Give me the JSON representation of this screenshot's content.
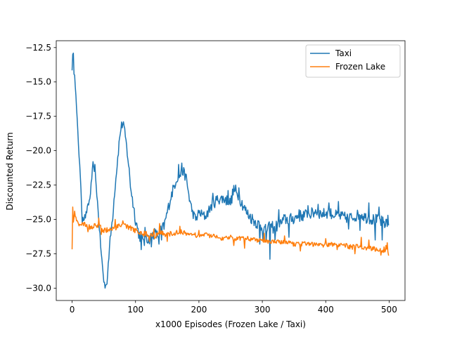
{
  "chart_data": {
    "type": "line",
    "title": "",
    "xlabel": "x1000 Episodes (Frozen Lake / Taxi)",
    "ylabel": "Discounted Return",
    "xlim": [
      -25,
      525
    ],
    "ylim": [
      -30.9,
      -12.0
    ],
    "xticks": [
      0,
      100,
      200,
      300,
      400,
      500
    ],
    "xtick_labels": [
      "0",
      "100",
      "200",
      "300",
      "400",
      "500"
    ],
    "yticks": [
      -30.0,
      -27.5,
      -25.0,
      -22.5,
      -20.0,
      -17.5,
      -15.0,
      -12.5
    ],
    "ytick_labels": [
      "−30.0",
      "−27.5",
      "−25.0",
      "−22.5",
      "−20.0",
      "−17.5",
      "−15.0",
      "−12.5"
    ],
    "grid": false,
    "legend_position": "top-right",
    "series": [
      {
        "name": "Taxi",
        "color": "#1f77b4",
        "anchors": [
          [
            0,
            -14.0
          ],
          [
            1,
            -13.1
          ],
          [
            3,
            -14.3
          ],
          [
            5,
            -15.2
          ],
          [
            8,
            -17.8
          ],
          [
            10,
            -19.5
          ],
          [
            13,
            -22.0
          ],
          [
            15,
            -24.0
          ],
          [
            18,
            -25.0
          ],
          [
            22,
            -24.6
          ],
          [
            28,
            -23.5
          ],
          [
            32,
            -21.5
          ],
          [
            35,
            -21.3
          ],
          [
            38,
            -22.5
          ],
          [
            42,
            -25.0
          ],
          [
            46,
            -27.5
          ],
          [
            50,
            -29.5
          ],
          [
            53,
            -29.9
          ],
          [
            56,
            -28.8
          ],
          [
            60,
            -26.5
          ],
          [
            64,
            -24.8
          ],
          [
            67,
            -23.0
          ],
          [
            70,
            -21.5
          ],
          [
            74,
            -19.5
          ],
          [
            77,
            -18.3
          ],
          [
            80,
            -18.0
          ],
          [
            84,
            -19.0
          ],
          [
            88,
            -20.5
          ],
          [
            92,
            -22.5
          ],
          [
            96,
            -23.8
          ],
          [
            100,
            -25.0
          ],
          [
            105,
            -26.0
          ],
          [
            110,
            -26.5
          ],
          [
            115,
            -26.0
          ],
          [
            120,
            -26.5
          ],
          [
            125,
            -26.2
          ],
          [
            130,
            -26.0
          ],
          [
            135,
            -26.2
          ],
          [
            140,
            -25.8
          ],
          [
            145,
            -25.5
          ],
          [
            150,
            -24.5
          ],
          [
            155,
            -23.5
          ],
          [
            160,
            -22.7
          ],
          [
            165,
            -22.0
          ],
          [
            170,
            -21.8
          ],
          [
            175,
            -21.5
          ],
          [
            180,
            -22.0
          ],
          [
            185,
            -23.5
          ],
          [
            190,
            -24.5
          ],
          [
            195,
            -25.0
          ],
          [
            200,
            -24.5
          ],
          [
            210,
            -24.8
          ],
          [
            220,
            -24.0
          ],
          [
            230,
            -23.5
          ],
          [
            240,
            -23.5
          ],
          [
            250,
            -23.8
          ],
          [
            255,
            -22.8
          ],
          [
            260,
            -23.2
          ],
          [
            265,
            -23.5
          ],
          [
            275,
            -24.5
          ],
          [
            285,
            -25.0
          ],
          [
            295,
            -25.4
          ],
          [
            305,
            -25.8
          ],
          [
            315,
            -25.5
          ],
          [
            325,
            -25.5
          ],
          [
            335,
            -25.0
          ],
          [
            345,
            -25.0
          ],
          [
            355,
            -24.8
          ],
          [
            365,
            -24.7
          ],
          [
            375,
            -24.6
          ],
          [
            385,
            -24.5
          ],
          [
            395,
            -24.6
          ],
          [
            405,
            -24.5
          ],
          [
            415,
            -24.7
          ],
          [
            425,
            -24.8
          ],
          [
            435,
            -24.9
          ],
          [
            445,
            -24.8
          ],
          [
            455,
            -24.6
          ],
          [
            465,
            -24.9
          ],
          [
            475,
            -25.0
          ],
          [
            485,
            -25.1
          ],
          [
            493,
            -25.3
          ],
          [
            497,
            -25.5
          ],
          [
            499,
            -25.6
          ]
        ],
        "noise": [
          [
            0,
            0.15
          ],
          [
            60,
            0.3
          ],
          [
            100,
            0.45
          ],
          [
            150,
            0.4
          ],
          [
            200,
            0.35
          ],
          [
            250,
            0.45
          ],
          [
            300,
            0.45
          ],
          [
            350,
            0.45
          ],
          [
            400,
            0.4
          ],
          [
            450,
            0.4
          ],
          [
            499,
            0.45
          ]
        ],
        "spikes": [
          [
            2,
            -12.9
          ],
          [
            4,
            -14.5
          ],
          [
            12,
            -21.0
          ],
          [
            16,
            -25.3
          ],
          [
            21,
            -24.9
          ],
          [
            33,
            -20.8
          ],
          [
            36,
            -21.0
          ],
          [
            52,
            -30.0
          ],
          [
            55,
            -29.7
          ],
          [
            63,
            -25.2
          ],
          [
            81,
            -17.9
          ],
          [
            109,
            -27.2
          ],
          [
            114,
            -26.9
          ],
          [
            125,
            -27.0
          ],
          [
            137,
            -26.8
          ],
          [
            141,
            -26.5
          ],
          [
            168,
            -21.0
          ],
          [
            173,
            -20.9
          ],
          [
            222,
            -23.1
          ],
          [
            246,
            -22.9
          ],
          [
            258,
            -22.5
          ],
          [
            263,
            -22.7
          ],
          [
            296,
            -26.8
          ],
          [
            301,
            -26.5
          ],
          [
            306,
            -26.6
          ],
          [
            312,
            -27.9
          ],
          [
            317,
            -26.0
          ],
          [
            320,
            -26.5
          ],
          [
            326,
            -24.3
          ],
          [
            342,
            -26.3
          ],
          [
            358,
            -24.3
          ],
          [
            372,
            -24.0
          ],
          [
            384,
            -24.3
          ],
          [
            388,
            -23.9
          ],
          [
            405,
            -23.8
          ],
          [
            420,
            -23.7
          ],
          [
            436,
            -25.7
          ],
          [
            454,
            -25.8
          ],
          [
            468,
            -23.8
          ],
          [
            478,
            -26.5
          ],
          [
            484,
            -24.1
          ],
          [
            489,
            -26.5
          ],
          [
            496,
            -25.0
          ],
          [
            498,
            -24.7
          ],
          [
            499,
            -25.4
          ]
        ]
      },
      {
        "name": "Frozen Lake",
        "color": "#ff7f0e",
        "anchors": [
          [
            0,
            -27.1
          ],
          [
            1,
            -24.2
          ],
          [
            3,
            -24.8
          ],
          [
            6,
            -24.9
          ],
          [
            10,
            -25.3
          ],
          [
            20,
            -25.4
          ],
          [
            30,
            -25.6
          ],
          [
            40,
            -25.4
          ],
          [
            50,
            -25.8
          ],
          [
            60,
            -25.7
          ],
          [
            70,
            -25.6
          ],
          [
            80,
            -25.4
          ],
          [
            90,
            -25.6
          ],
          [
            100,
            -25.8
          ],
          [
            110,
            -26.0
          ],
          [
            120,
            -26.1
          ],
          [
            130,
            -26.2
          ],
          [
            140,
            -26.0
          ],
          [
            150,
            -26.1
          ],
          [
            160,
            -26.0
          ],
          [
            170,
            -25.9
          ],
          [
            180,
            -26.0
          ],
          [
            190,
            -26.1
          ],
          [
            200,
            -26.2
          ],
          [
            210,
            -26.1
          ],
          [
            220,
            -26.2
          ],
          [
            230,
            -26.3
          ],
          [
            240,
            -26.4
          ],
          [
            250,
            -26.3
          ],
          [
            260,
            -26.4
          ],
          [
            270,
            -26.3
          ],
          [
            280,
            -26.4
          ],
          [
            290,
            -26.5
          ],
          [
            300,
            -26.5
          ],
          [
            310,
            -26.6
          ],
          [
            320,
            -26.6
          ],
          [
            330,
            -26.7
          ],
          [
            340,
            -26.7
          ],
          [
            350,
            -26.8
          ],
          [
            360,
            -26.8
          ],
          [
            370,
            -26.7
          ],
          [
            380,
            -26.8
          ],
          [
            390,
            -26.8
          ],
          [
            400,
            -26.9
          ],
          [
            410,
            -26.8
          ],
          [
            420,
            -26.9
          ],
          [
            430,
            -26.9
          ],
          [
            440,
            -27.0
          ],
          [
            450,
            -27.0
          ],
          [
            460,
            -27.1
          ],
          [
            470,
            -27.1
          ],
          [
            480,
            -27.2
          ],
          [
            490,
            -27.2
          ],
          [
            499,
            -27.3
          ]
        ],
        "noise": [
          [
            0,
            0.05
          ],
          [
            10,
            0.2
          ],
          [
            100,
            0.2
          ],
          [
            200,
            0.17
          ],
          [
            300,
            0.17
          ],
          [
            400,
            0.17
          ],
          [
            499,
            0.2
          ]
        ],
        "spikes": [
          [
            1,
            -24.1
          ],
          [
            2,
            -25.2
          ],
          [
            4,
            -24.4
          ],
          [
            7,
            -25.1
          ],
          [
            25,
            -25.9
          ],
          [
            42,
            -24.9
          ],
          [
            46,
            -26.1
          ],
          [
            68,
            -25.0
          ],
          [
            80,
            -25.1
          ],
          [
            122,
            -26.6
          ],
          [
            129,
            -25.7
          ],
          [
            138,
            -25.3
          ],
          [
            150,
            -26.6
          ],
          [
            170,
            -25.5
          ],
          [
            200,
            -25.8
          ],
          [
            255,
            -26.9
          ],
          [
            272,
            -27.1
          ],
          [
            303,
            -26.0
          ],
          [
            335,
            -26.2
          ],
          [
            360,
            -27.3
          ],
          [
            400,
            -26.4
          ],
          [
            418,
            -27.2
          ],
          [
            446,
            -27.5
          ],
          [
            456,
            -26.3
          ],
          [
            468,
            -26.5
          ],
          [
            487,
            -27.6
          ],
          [
            492,
            -27.0
          ],
          [
            495,
            -26.9
          ],
          [
            497,
            -26.7
          ],
          [
            499,
            -27.6
          ]
        ]
      }
    ]
  }
}
